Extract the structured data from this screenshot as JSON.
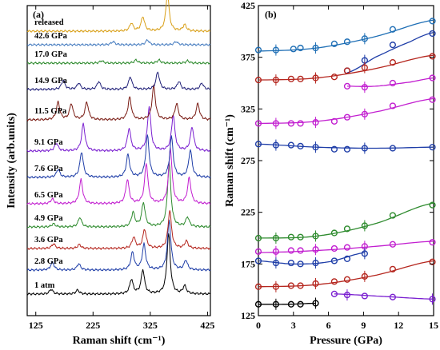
{
  "chart_data": [
    {
      "type": "line",
      "panel_label": "(a)",
      "xlabel": "Raman shift (cm⁻¹)",
      "ylabel": "Intensity (arb.units)",
      "xlim": [
        110,
        430
      ],
      "xticks": [
        125,
        225,
        325,
        425
      ],
      "series": [
        {
          "name": "1 atm",
          "color": "#000000",
          "peaks": [
            [
              152,
              6
            ],
            [
              198,
              5
            ],
            [
              292,
              18
            ],
            [
              312,
              30
            ],
            [
              357,
              75
            ],
            [
              385,
              10
            ]
          ]
        },
        {
          "name": "2.8 GPa",
          "color": "#1f3ea8",
          "peaks": [
            [
              154,
              10
            ],
            [
              200,
              8
            ],
            [
              294,
              22
            ],
            [
              314,
              32
            ],
            [
              358,
              62
            ],
            [
              387,
              12
            ]
          ]
        },
        {
          "name": "3.6 GPa",
          "color": "#b5261e",
          "peaks": [
            [
              156,
              6
            ],
            [
              201,
              5
            ],
            [
              296,
              14
            ],
            [
              315,
              24
            ],
            [
              359,
              48
            ],
            [
              388,
              9
            ]
          ]
        },
        {
          "name": "4.9 GPa",
          "color": "#2e8b2e",
          "peaks": [
            [
              156,
              4
            ],
            [
              202,
              12
            ],
            [
              295,
              18
            ],
            [
              313,
              30
            ],
            [
              358,
              80
            ],
            [
              390,
              12
            ]
          ]
        },
        {
          "name": "6.5 GPa",
          "color": "#c21fd0",
          "peaks": [
            [
              154,
              6
            ],
            [
              204,
              30
            ],
            [
              285,
              30
            ],
            [
              318,
              50
            ],
            [
              360,
              70
            ],
            [
              393,
              32
            ]
          ]
        },
        {
          "name": "7.6 GPa",
          "color": "#1f3ea8",
          "peaks": [
            [
              164,
              10
            ],
            [
              205,
              32
            ],
            [
              286,
              28
            ],
            [
              320,
              52
            ],
            [
              362,
              50
            ],
            [
              395,
              34
            ]
          ]
        },
        {
          "name": "9.1 GPa",
          "color": "#7a1fd0",
          "peaks": [
            [
              161,
              10
            ],
            [
              208,
              34
            ],
            [
              288,
              28
            ],
            [
              323,
              55
            ],
            [
              365,
              45
            ],
            [
              398,
              30
            ]
          ]
        },
        {
          "name": "11.5 GPa",
          "color": "#7a1c14",
          "peaks": [
            [
              164,
              22
            ],
            [
              187,
              20
            ],
            [
              214,
              22
            ],
            [
              289,
              28
            ],
            [
              331,
              42
            ],
            [
              371,
              20
            ],
            [
              408,
              20
            ]
          ]
        },
        {
          "name": "14.9 GPa",
          "color": "#23237a",
          "peaks": [
            [
              173,
              12
            ],
            [
              200,
              8
            ],
            [
              235,
              10
            ],
            [
              290,
              16
            ],
            [
              338,
              22
            ],
            [
              375,
              10
            ],
            [
              415,
              8
            ]
          ]
        },
        {
          "name": "17.0 GPa",
          "color": "#2e8b2e",
          "peaks": [
            [
              240,
              3
            ],
            [
              300,
              4
            ],
            [
              340,
              4
            ],
            [
              390,
              3
            ]
          ]
        },
        {
          "name": "42.6 GPa",
          "color": "#4a7fc1",
          "peaks": [
            [
              260,
              4
            ],
            [
              320,
              6
            ],
            [
              370,
              4
            ]
          ]
        },
        {
          "name": "released",
          "color": "#d9a019",
          "peaks": [
            [
              292,
              10
            ],
            [
              312,
              18
            ],
            [
              355,
              46
            ],
            [
              385,
              8
            ]
          ]
        }
      ]
    },
    {
      "type": "scatter",
      "panel_label": "(b)",
      "xlabel": "Pressure (GPa)",
      "ylabel": "Raman shift (cm⁻¹)",
      "xlim": [
        0,
        15
      ],
      "ylim": [
        125,
        425
      ],
      "xticks": [
        0,
        3,
        6,
        9,
        12,
        15
      ],
      "yticks": [
        125,
        175,
        225,
        275,
        325,
        375,
        425
      ],
      "series": [
        {
          "color": "#1f6fb5",
          "x": [
            0,
            1.5,
            3,
            3.6,
            4.9,
            6.5,
            7.6,
            9.1,
            11.5,
            14.9
          ],
          "y": [
            382,
            382,
            383,
            384,
            384,
            388,
            390,
            393,
            402,
            410
          ],
          "fit": [
            [
              0,
              381
            ],
            [
              5,
              384
            ],
            [
              10,
              395
            ],
            [
              15,
              411
            ]
          ]
        },
        {
          "color": "#1f3ea8",
          "x": [
            7.6,
            9.1,
            11.5,
            14.9
          ],
          "y": [
            362,
            372,
            387,
            398
          ],
          "fit": [
            [
              7.6,
              360
            ],
            [
              10,
              375
            ],
            [
              13,
              390
            ],
            [
              15,
              399
            ]
          ]
        },
        {
          "color": "#b5261e",
          "x": [
            0,
            1.5,
            2.8,
            3.6,
            4.9,
            6.5,
            7.6,
            9.1,
            11.5,
            14.9
          ],
          "y": [
            353,
            353,
            354,
            354,
            355,
            356,
            362,
            365,
            370,
            376
          ],
          "fit": [
            [
              0,
              353
            ],
            [
              5,
              355
            ],
            [
              10,
              364
            ],
            [
              15,
              377
            ]
          ]
        },
        {
          "color": "#c21fd0",
          "x": [
            7.6,
            9.1,
            11.5,
            14.9
          ],
          "y": [
            347,
            346,
            350,
            355
          ],
          "fit": [
            [
              7.6,
              347
            ],
            [
              10,
              347
            ],
            [
              13,
              351
            ],
            [
              15,
              355
            ]
          ]
        },
        {
          "color": "#c21fd0",
          "x": [
            0,
            1.5,
            2.8,
            3.6,
            4.9,
            6.5,
            7.6,
            9.1,
            11.5,
            14.9
          ],
          "y": [
            311,
            311,
            311,
            311,
            312,
            313,
            317,
            320,
            328,
            334
          ],
          "fit": [
            [
              0,
              311
            ],
            [
              5,
              313
            ],
            [
              10,
              322
            ],
            [
              15,
              335
            ]
          ]
        },
        {
          "color": "#1f3ea8",
          "x": [
            0,
            1.5,
            2.8,
            3.6,
            4.9,
            6.5,
            7.6,
            9.1,
            11.5,
            14.9
          ],
          "y": [
            291,
            290,
            290,
            289,
            288,
            286,
            286,
            287,
            287,
            288
          ],
          "fit": [
            [
              0,
              291
            ],
            [
              5,
              288
            ],
            [
              10,
              287
            ],
            [
              15,
              288
            ]
          ]
        },
        {
          "color": "#2e8b2e",
          "x": [
            0,
            1.5,
            2.8,
            3.6,
            4.9,
            6.5,
            7.6,
            9.1,
            11.5,
            14.9
          ],
          "y": [
            200,
            200,
            201,
            201,
            202,
            205,
            209,
            212,
            222,
            232
          ],
          "fit": [
            [
              0,
              200
            ],
            [
              5,
              202
            ],
            [
              10,
              214
            ],
            [
              15,
              234
            ]
          ]
        },
        {
          "color": "#c21fd0",
          "x": [
            0,
            1.5,
            2.8,
            3.6,
            4.9,
            6.5,
            7.6,
            9.1,
            11.5,
            14.9
          ],
          "y": [
            187,
            187,
            188,
            188,
            189,
            190,
            191,
            192,
            194,
            196
          ],
          "fit": [
            [
              0,
              186
            ],
            [
              5,
              188
            ],
            [
              10,
              192
            ],
            [
              15,
              197
            ]
          ]
        },
        {
          "color": "#1f3ea8",
          "x": [
            0,
            1.5,
            2.8,
            3.6,
            4.9,
            6.5,
            7.6,
            9.1
          ],
          "y": [
            178,
            176,
            176,
            175,
            176,
            178,
            180,
            185
          ],
          "fit": [
            [
              0,
              178
            ],
            [
              3,
              175
            ],
            [
              6,
              177
            ],
            [
              9.1,
              186
            ]
          ]
        },
        {
          "color": "#b5261e",
          "x": [
            0,
            1.5,
            2.8,
            3.6,
            4.9,
            6.5,
            7.6,
            9.1,
            11.5,
            14.9
          ],
          "y": [
            153,
            153,
            154,
            154,
            156,
            158,
            160,
            163,
            170,
            177
          ],
          "fit": [
            [
              0,
              153
            ],
            [
              5,
              155
            ],
            [
              10,
              164
            ],
            [
              15,
              178
            ]
          ]
        },
        {
          "color": "#000000",
          "x": [
            0,
            1.5,
            2.8,
            3.6,
            4.9
          ],
          "y": [
            136,
            136,
            136,
            136,
            137
          ],
          "fit": [
            [
              0,
              136
            ],
            [
              2.5,
              136
            ],
            [
              4.9,
              137
            ]
          ]
        },
        {
          "color": "#7a1fd0",
          "x": [
            6.5,
            7.6,
            9.1,
            11.5,
            14.9
          ],
          "y": [
            146,
            145,
            144,
            143,
            141
          ],
          "fit": [
            [
              6.5,
              146
            ],
            [
              10,
              144
            ],
            [
              15,
              141
            ]
          ]
        }
      ]
    }
  ]
}
